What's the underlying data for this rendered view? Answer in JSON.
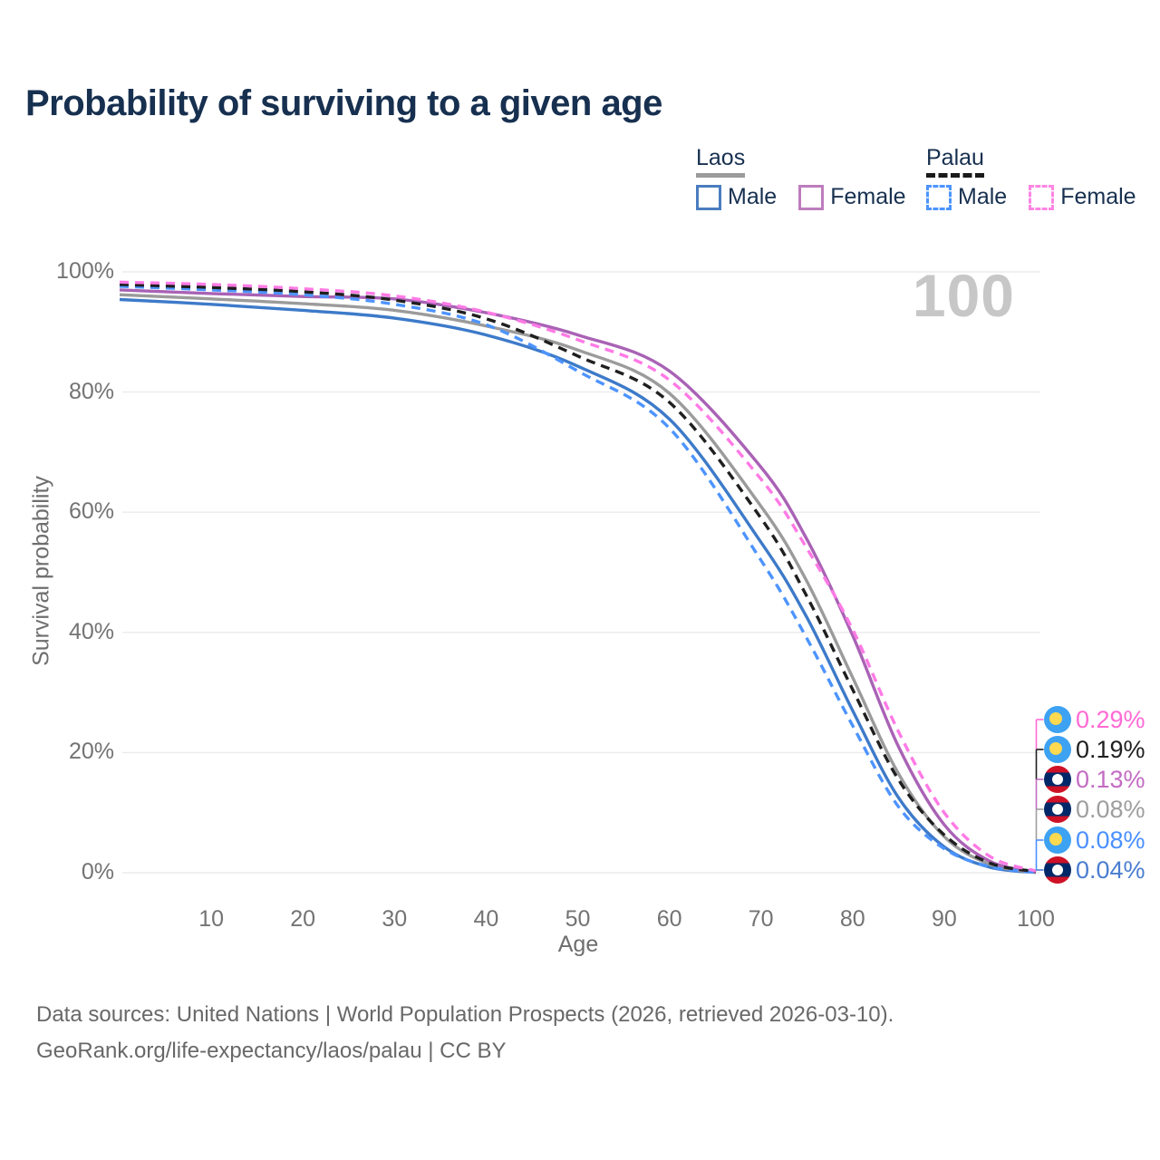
{
  "title": "Probability of surviving to a given age",
  "watermark": "100",
  "legend": {
    "groups": [
      {
        "label": "Laos",
        "line_style": "solid",
        "underline_color": "#9b9b9b",
        "items": [
          {
            "label": "Male",
            "color": "#4a7dbf"
          },
          {
            "label": "Female",
            "color": "#bd7dbe"
          }
        ]
      },
      {
        "label": "Palau",
        "line_style": "dashed",
        "underline_color": "#1a1a1a",
        "items": [
          {
            "label": "Male",
            "color": "#4d94ff"
          },
          {
            "label": "Female",
            "color": "#ff85e3"
          }
        ]
      }
    ]
  },
  "chart_data": {
    "type": "line",
    "title": "Probability of surviving to a given age",
    "xlabel": "Age",
    "ylabel": "Survival probability",
    "xlim": [
      0,
      100
    ],
    "ylim": [
      0,
      100
    ],
    "grid": "horizontal",
    "legend_position": "top-right",
    "x_ticks": [
      10,
      20,
      30,
      40,
      50,
      60,
      70,
      80,
      90,
      100
    ],
    "y_ticks": [
      0,
      20,
      40,
      60,
      80,
      100
    ],
    "y_tick_labels": [
      "0%",
      "20%",
      "40%",
      "60%",
      "80%",
      "100%"
    ],
    "x": [
      0,
      10,
      20,
      30,
      40,
      50,
      60,
      70,
      75,
      80,
      85,
      90,
      95,
      100
    ],
    "series": [
      {
        "name": "Laos Male",
        "country": "Laos",
        "sex": "Male",
        "color": "#3d7ac9",
        "dash": "solid",
        "values": [
          95.4,
          94.6,
          93.6,
          92.3,
          89.5,
          84.3,
          75.5,
          55.0,
          42.5,
          27.0,
          12.5,
          4.3,
          0.9,
          0.04
        ],
        "end_label": "0.04%"
      },
      {
        "name": "Laos",
        "country": "Laos",
        "sex": "Both",
        "color": "#9b9b9b",
        "dash": "solid",
        "values": [
          96.2,
          95.5,
          94.7,
          93.6,
          91.0,
          87.0,
          79.8,
          61.0,
          48.5,
          32.5,
          16.5,
          6.0,
          1.4,
          0.08
        ],
        "end_label": "0.08%"
      },
      {
        "name": "Laos Female",
        "country": "Laos",
        "sex": "Female",
        "color": "#a962b5",
        "dash": "solid",
        "values": [
          97.0,
          96.4,
          95.9,
          95.5,
          93.2,
          89.5,
          83.5,
          67.5,
          55.5,
          39.5,
          21.0,
          8.0,
          1.9,
          0.13
        ],
        "end_label": "0.13%"
      },
      {
        "name": "Palau Male",
        "country": "Palau",
        "sex": "Male",
        "color": "#4d94ff",
        "dash": "dashed",
        "values": [
          97.6,
          97.0,
          96.2,
          94.6,
          91.2,
          83.5,
          74.0,
          52.0,
          39.0,
          24.5,
          11.0,
          4.0,
          1.0,
          0.08
        ],
        "end_label": "0.08%"
      },
      {
        "name": "Palau",
        "country": "Palau",
        "sex": "Both",
        "color": "#1f1f1f",
        "dash": "dashed",
        "values": [
          97.9,
          97.4,
          96.7,
          95.3,
          92.2,
          86.0,
          78.3,
          59.0,
          46.0,
          30.5,
          15.5,
          6.3,
          1.6,
          0.19
        ],
        "end_label": "0.19%"
      },
      {
        "name": "Palau Female",
        "country": "Palau",
        "sex": "Female",
        "color": "#ff7ae5",
        "dash": "dashed",
        "values": [
          98.3,
          97.9,
          97.2,
          96.0,
          93.3,
          88.7,
          82.0,
          65.5,
          54.0,
          40.5,
          23.5,
          10.0,
          2.7,
          0.29
        ],
        "end_label": "0.29%"
      }
    ]
  },
  "end_labels": [
    {
      "series": "Palau Female",
      "value": "0.29%",
      "color": "#ff6ad5",
      "flag": "palau"
    },
    {
      "series": "Palau",
      "value": "0.19%",
      "color": "#1f1f1f",
      "flag": "palau"
    },
    {
      "series": "Laos Female",
      "value": "0.13%",
      "color": "#c36cc3",
      "flag": "laos"
    },
    {
      "series": "Laos",
      "value": "0.08%",
      "color": "#9e9e9e",
      "flag": "laos"
    },
    {
      "series": "Palau Male",
      "value": "0.08%",
      "color": "#4a90ff",
      "flag": "palau"
    },
    {
      "series": "Laos Male",
      "value": "0.04%",
      "color": "#4a7dd0",
      "flag": "laos"
    }
  ],
  "footer": {
    "line1": "Data sources: United Nations | World Population Prospects (2026, retrieved 2026-03-10).",
    "line2": "GeoRank.org/life-expectancy/laos/palau | CC BY"
  },
  "flag_colors": {
    "palau_bg": "#3da2f2",
    "palau_circle": "#ffd94f",
    "laos_red": "#CE1126",
    "laos_blue": "#002868",
    "laos_circle": "#ffffff"
  }
}
